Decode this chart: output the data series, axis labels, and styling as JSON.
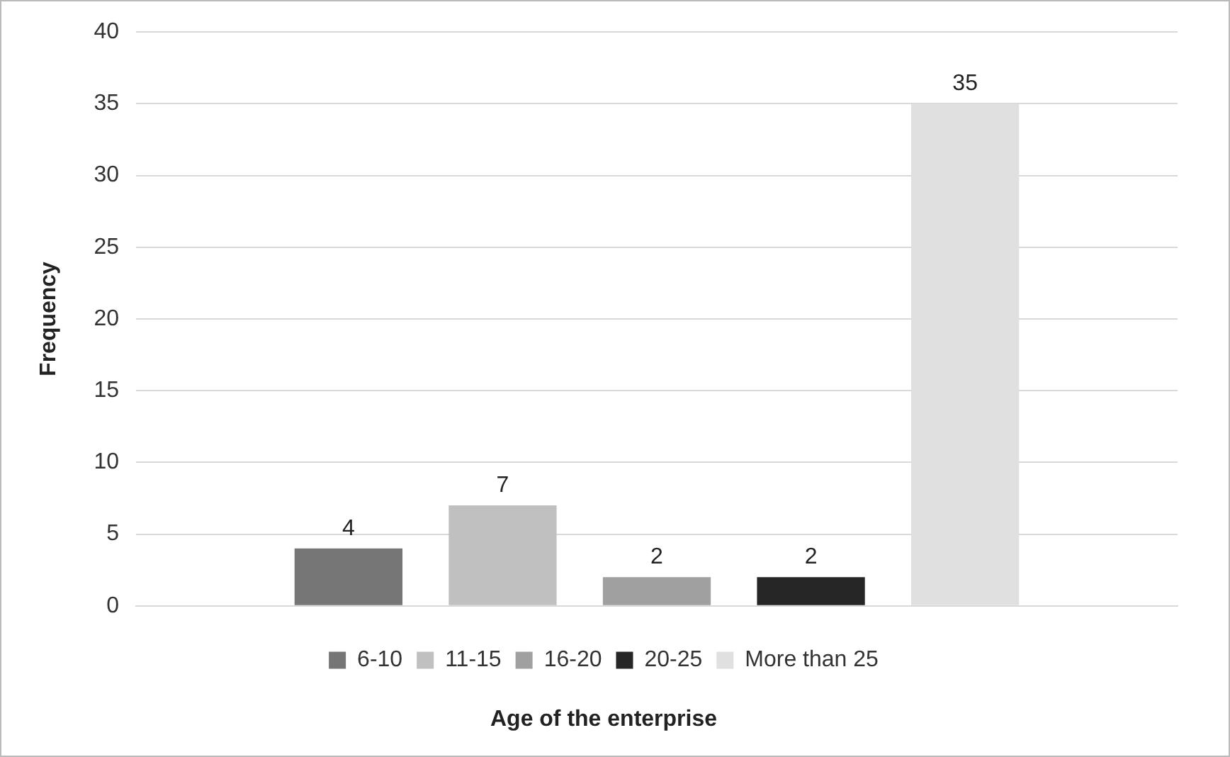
{
  "chart_data": {
    "type": "bar",
    "xlabel": "Age of the enterprise",
    "ylabel": "Frequency",
    "categories": [
      null
    ],
    "series": [
      {
        "name": "6-10",
        "color": "#767676",
        "values": [
          4
        ]
      },
      {
        "name": "11-15",
        "color": "#c0c0c0",
        "values": [
          7
        ]
      },
      {
        "name": "16-20",
        "color": "#a0a0a0",
        "values": [
          2
        ]
      },
      {
        "name": "20-25",
        "color": "#262626",
        "values": [
          2
        ]
      },
      {
        "name": "More than 25",
        "color": "#e0e0e0",
        "values": [
          35
        ]
      }
    ],
    "ylim": [
      0,
      40
    ],
    "yticks": [
      0,
      5,
      10,
      15,
      20,
      25,
      30,
      35,
      40
    ],
    "grid": "y",
    "legend": "bottom",
    "data_labels": true
  }
}
